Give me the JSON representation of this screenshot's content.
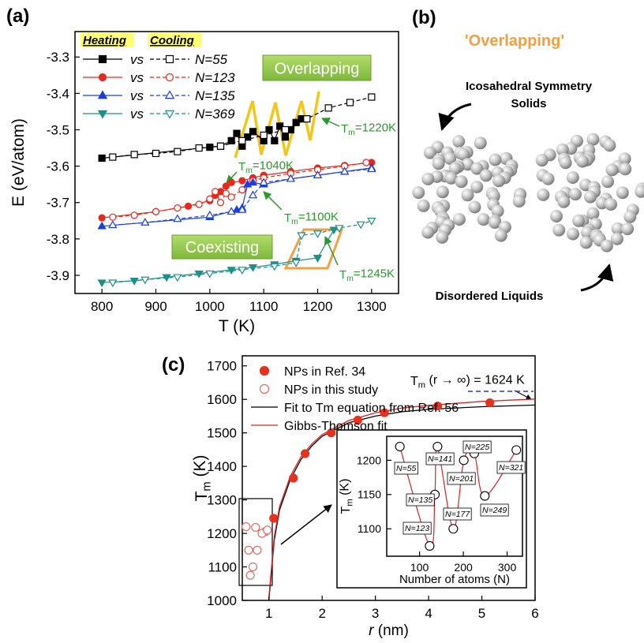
{
  "chart_data": [
    {
      "type": "line",
      "panel_label": "(a)",
      "x_label": "T (K)",
      "y_label": "E (eV/atom)",
      "xlim": [
        750,
        1350
      ],
      "xticks": [
        800,
        900,
        1000,
        1100,
        1200,
        1300
      ],
      "ylim": [
        -3.95,
        -3.23
      ],
      "yticks": [
        -3.9,
        -3.8,
        -3.7,
        -3.6,
        -3.5,
        -3.4,
        -3.3
      ],
      "legend_headers": [
        "Heating",
        "Cooling"
      ],
      "legend_joiner": "vs",
      "series": [
        {
          "name": "N=55",
          "color": "#000000",
          "heating": {
            "marker": "square",
            "x": [
              800,
              1000,
              1020,
              1040,
              1050,
              1060,
              1070,
              1080,
              1100,
              1110,
              1120,
              1130,
              1140,
              1150,
              1160,
              1170
            ],
            "values": [
              -3.578,
              -3.548,
              -3.545,
              -3.53,
              -3.51,
              -3.545,
              -3.52,
              -3.505,
              -3.53,
              -3.5,
              -3.53,
              -3.49,
              -3.52,
              -3.5,
              -3.48,
              -3.47
            ]
          },
          "cooling": {
            "marker": "square",
            "x": [
              820,
              860,
              900,
              940,
              980,
              1020,
              1060,
              1100,
              1140,
              1180,
              1220,
              1260,
              1300
            ],
            "values": [
              -3.575,
              -3.568,
              -3.565,
              -3.56,
              -3.55,
              -3.545,
              -3.53,
              -3.515,
              -3.5,
              -3.47,
              -3.44,
              -3.425,
              -3.41
            ]
          }
        },
        {
          "name": "N=123",
          "color": "#e8281c",
          "heating": {
            "marker": "circle",
            "x": [
              800,
              900,
              960,
              1000,
              1010,
              1020,
              1030,
              1040,
              1060,
              1080,
              1100,
              1150,
              1200,
              1250,
              1300
            ],
            "values": [
              -3.742,
              -3.725,
              -3.71,
              -3.695,
              -3.68,
              -3.67,
              -3.655,
              -3.645,
              -3.64,
              -3.632,
              -3.625,
              -3.615,
              -3.605,
              -3.598,
              -3.59
            ]
          },
          "cooling": {
            "marker": "circle",
            "x": [
              820,
              860,
              900,
              940,
              980,
              1000,
              1010,
              1020,
              1030,
              1040,
              1060,
              1080,
              1100,
              1150,
              1200,
              1250,
              1290
            ],
            "values": [
              -3.74,
              -3.735,
              -3.725,
              -3.715,
              -3.705,
              -3.69,
              -3.67,
              -3.7,
              -3.675,
              -3.685,
              -3.665,
              -3.64,
              -3.632,
              -3.62,
              -3.61,
              -3.6,
              -3.59
            ]
          }
        },
        {
          "name": "N=135",
          "color": "#1a3fe0",
          "heating": {
            "marker": "triangle-up",
            "x": [
              800,
              1000,
              1050,
              1060,
              1070,
              1080,
              1100,
              1150,
              1200,
              1250,
              1300
            ],
            "values": [
              -3.765,
              -3.74,
              -3.72,
              -3.715,
              -3.65,
              -3.645,
              -3.65,
              -3.635,
              -3.625,
              -3.615,
              -3.605
            ]
          },
          "cooling": {
            "marker": "triangle-up",
            "x": [
              820,
              880,
              940,
              1000,
              1040,
              1060,
              1080,
              1100,
              1150,
              1200,
              1250,
              1300
            ],
            "values": [
              -3.762,
              -3.755,
              -3.745,
              -3.735,
              -3.725,
              -3.72,
              -3.68,
              -3.645,
              -3.635,
              -3.625,
              -3.615,
              -3.608
            ]
          }
        },
        {
          "name": "N=369",
          "color": "#1a9088",
          "heating": {
            "marker": "triangle-down",
            "x": [
              800,
              860,
              920,
              980,
              1040,
              1080,
              1120,
              1160,
              1200,
              1230
            ],
            "values": [
              -3.92,
              -3.915,
              -3.905,
              -3.895,
              -3.885,
              -3.878,
              -3.87,
              -3.86,
              -3.852,
              -3.775
            ]
          },
          "cooling": {
            "marker": "triangle-down",
            "x": [
              820,
              880,
              940,
              1000,
              1060,
              1120,
              1160,
              1170,
              1200,
              1240,
              1280,
              1300
            ],
            "values": [
              -3.92,
              -3.912,
              -3.905,
              -3.895,
              -3.885,
              -3.875,
              -3.865,
              -3.79,
              -3.785,
              -3.77,
              -3.76,
              -3.75
            ]
          }
        }
      ],
      "annotations": [
        {
          "text": "Overlapping"
        },
        {
          "text": "Coexisting"
        },
        {
          "parts": [
            "T",
            "m",
            "=1220K"
          ]
        },
        {
          "parts": [
            "T",
            "m",
            "=1040K"
          ]
        },
        {
          "parts": [
            "T",
            "m",
            "=1100K"
          ]
        },
        {
          "parts": [
            "T",
            "m",
            "=1245K"
          ]
        }
      ]
    },
    {
      "type": "diagram",
      "panel_label": "(b)",
      "title": "'Overlapping'",
      "solid_label": [
        "Icosahedral Symmetry",
        "Solids"
      ],
      "liquid_label": "Disordered Liquids"
    },
    {
      "type": "scatter",
      "panel_label": "(c)",
      "x_label_parts": [
        "r",
        " (nm)"
      ],
      "y_label_parts": [
        "T",
        "m",
        " (K)"
      ],
      "xlim": [
        0.5,
        6
      ],
      "xticks": [
        1,
        2,
        3,
        4,
        5,
        6
      ],
      "ylim": [
        1000,
        1730
      ],
      "yticks": [
        1000,
        1100,
        1200,
        1300,
        1400,
        1500,
        1600,
        1700
      ],
      "series": [
        {
          "name": "NPs in Ref. 34",
          "color": "#e8301c",
          "style": "filled",
          "x": [
            1.09,
            1.46,
            1.68,
            2.17,
            2.67,
            3.17,
            4.17,
            5.15
          ],
          "values": [
            1245,
            1365,
            1438,
            1500,
            1538,
            1560,
            1580,
            1590
          ]
        },
        {
          "name": "NPs in this study",
          "color": "#e06a64",
          "style": "open",
          "x": [
            0.57,
            0.75,
            0.93,
            0.87,
            0.97,
            0.62,
            0.78,
            0.7,
            0.65
          ],
          "values": [
            1220,
            1218,
            1205,
            1200,
            1210,
            1150,
            1150,
            1100,
            1075
          ]
        },
        {
          "name": "Fit to Tm equation from Ref. 56",
          "color": "#000000",
          "style": "line",
          "x": [
            1.0,
            1.1,
            1.2,
            1.4,
            1.6,
            1.8,
            2.0,
            2.5,
            3,
            3.5,
            4,
            5,
            6
          ],
          "values": [
            1000,
            1180,
            1270,
            1360,
            1420,
            1460,
            1490,
            1530,
            1550,
            1563,
            1570,
            1578,
            1583
          ]
        },
        {
          "name": "Gibbs-Thomson fit",
          "color": "#e02020",
          "style": "line",
          "x": [
            1.0,
            1.1,
            1.2,
            1.4,
            1.6,
            1.8,
            2.0,
            2.5,
            3,
            3.5,
            4,
            5,
            6
          ],
          "values": [
            1010,
            1190,
            1280,
            1370,
            1428,
            1466,
            1495,
            1537,
            1560,
            1574,
            1582,
            1594,
            1601
          ]
        }
      ],
      "asymptote": {
        "value": 1624,
        "color": "#1f3fd0",
        "label_parts": [
          "T",
          "m",
          " (r → ∞) = 1624 K"
        ]
      },
      "inset": {
        "type": "scatter",
        "x_label": "Number of atoms (N)",
        "y_label_parts": [
          "T",
          "m",
          " (K)"
        ],
        "xlim": [
          25,
          335
        ],
        "xticks": [
          100,
          200,
          300
        ],
        "ylim": [
          1060,
          1235
        ],
        "yticks": [
          1100,
          1150,
          1200
        ],
        "x": [
          55,
          123,
          135,
          141,
          177,
          201,
          225,
          249,
          321
        ],
        "values": [
          1220,
          1075,
          1150,
          1220,
          1100,
          1200,
          1210,
          1148,
          1215
        ],
        "point_labels": [
          "N=55",
          "N=123",
          "N=135",
          "N=141",
          "N=177",
          "N=201",
          "N=225",
          "N=249",
          "N=321"
        ],
        "curve_color": "#e02020"
      }
    }
  ]
}
